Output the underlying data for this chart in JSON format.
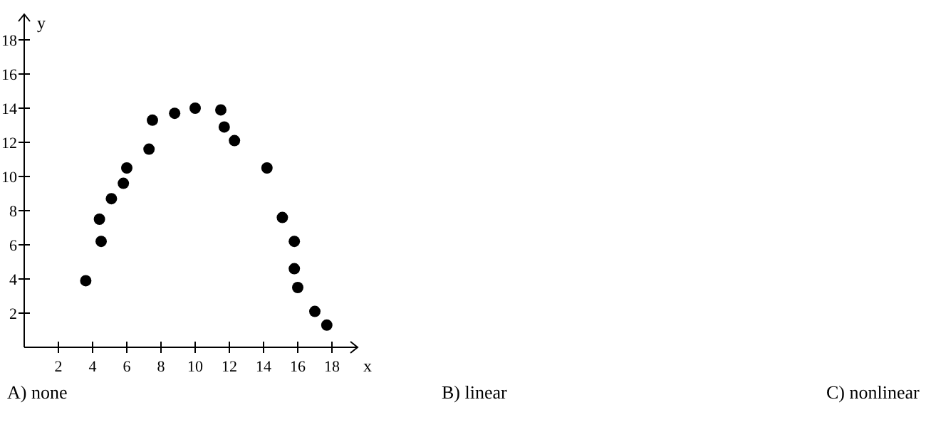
{
  "chart_data": {
    "type": "scatter",
    "xlabel": "x",
    "ylabel": "y",
    "x": [
      3.6,
      4.4,
      4.5,
      5.1,
      5.8,
      6.0,
      7.3,
      7.5,
      8.8,
      10.0,
      11.5,
      11.7,
      12.3,
      14.2,
      15.1,
      15.8,
      15.8,
      16.0,
      17.0,
      17.7
    ],
    "values": [
      3.9,
      7.5,
      6.2,
      8.7,
      9.6,
      10.5,
      11.6,
      13.3,
      13.7,
      14.0,
      13.9,
      12.9,
      12.1,
      10.5,
      7.6,
      6.2,
      4.6,
      3.5,
      2.1,
      1.3
    ],
    "color": "#000000",
    "marker": "circle",
    "xlim": [
      0,
      19.5
    ],
    "ylim": [
      0,
      19.5
    ],
    "xticks": [
      2,
      4,
      6,
      8,
      10,
      12,
      14,
      16,
      18
    ],
    "yticks": [
      2,
      4,
      6,
      8,
      10,
      12,
      14,
      16,
      18
    ],
    "annotations": [
      "A) none",
      "B) linear",
      "C) nonlinear"
    ]
  }
}
